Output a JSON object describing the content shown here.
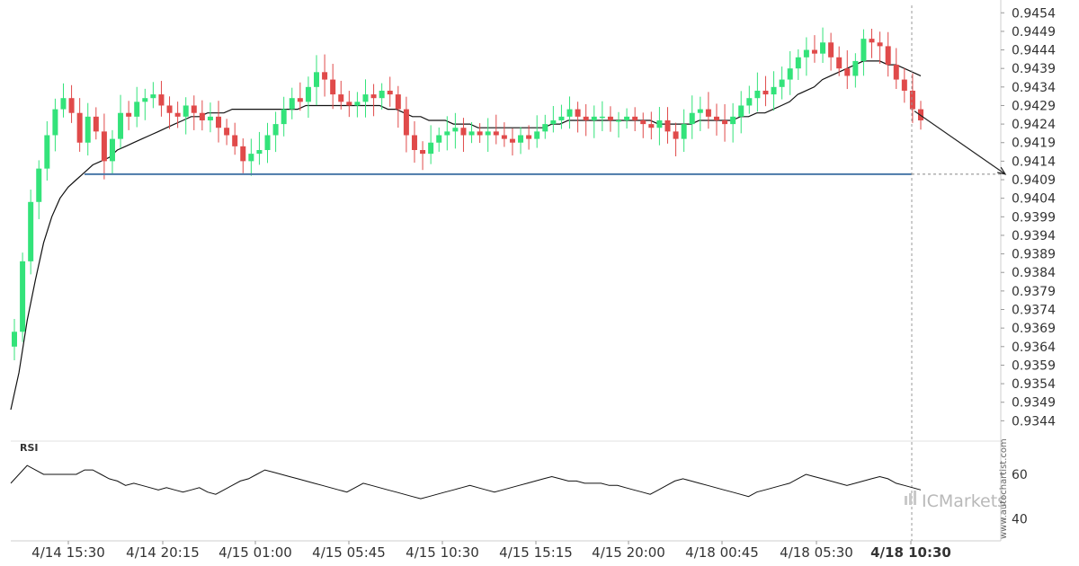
{
  "chart_data": {
    "type": "candlestick",
    "grid": true,
    "colors": {
      "up": "#33e37a",
      "down": "#e04a4a",
      "ma": "#111111",
      "support": "#4a78a8",
      "rsi": "#111111",
      "grid": "#e6e6e6"
    },
    "ylim": [
      0.9339,
      0.9456
    ],
    "y_ticks": [
      "0.9454",
      "0.9449",
      "0.9444",
      "0.9439",
      "0.9434",
      "0.9429",
      "0.9424",
      "0.9419",
      "0.9414",
      "0.9409",
      "0.9404",
      "0.9399",
      "0.9394",
      "0.9389",
      "0.9384",
      "0.9379",
      "0.9374",
      "0.9369",
      "0.9364",
      "0.9359",
      "0.9354",
      "0.9349",
      "0.9344"
    ],
    "x_labels": [
      "4/14 15:30",
      "4/14 20:15",
      "4/15 01:00",
      "4/15 05:45",
      "4/15 10:30",
      "4/15 15:15",
      "4/15 20:00",
      "4/18 00:45",
      "4/18 05:30",
      "4/18 10:30"
    ],
    "support_level": 0.94105,
    "projection": {
      "from": 0.94275,
      "to": 0.94105
    },
    "last_candle_label": "4/18 10:30",
    "close_series": [
      0.9368,
      0.9387,
      0.9403,
      0.9412,
      0.9421,
      0.9428,
      0.9431,
      0.9427,
      0.9419,
      0.9426,
      0.9422,
      0.9414,
      0.942,
      0.9427,
      0.9426,
      0.943,
      0.9431,
      0.9432,
      0.9429,
      0.9427,
      0.9426,
      0.9429,
      0.9427,
      0.9425,
      0.9426,
      0.9423,
      0.9421,
      0.9418,
      0.9414,
      0.9416,
      0.9417,
      0.9421,
      0.9424,
      0.9428,
      0.9431,
      0.943,
      0.9434,
      0.9438,
      0.9436,
      0.9432,
      0.943,
      0.9429,
      0.943,
      0.9432,
      0.9431,
      0.9433,
      0.9432,
      0.9428,
      0.9421,
      0.9417,
      0.9416,
      0.9419,
      0.9421,
      0.9422,
      0.9423,
      0.9421,
      0.9422,
      0.9421,
      0.9422,
      0.9421,
      0.942,
      0.9419,
      0.9421,
      0.942,
      0.9422,
      0.9424,
      0.9425,
      0.9426,
      0.9428,
      0.9426,
      0.9425,
      0.9426,
      0.9426,
      0.9425,
      0.9425,
      0.9426,
      0.9425,
      0.9424,
      0.9423,
      0.9425,
      0.9422,
      0.942,
      0.9424,
      0.9427,
      0.9428,
      0.9426,
      0.9425,
      0.9424,
      0.9426,
      0.9429,
      0.9431,
      0.9433,
      0.9432,
      0.9434,
      0.9436,
      0.9439,
      0.9442,
      0.9444,
      0.9443,
      0.9446,
      0.9442,
      0.9439,
      0.9437,
      0.9441,
      0.9447,
      0.9446,
      0.9445,
      0.944,
      0.9436,
      0.9433,
      0.9428,
      0.9425
    ],
    "ma_series": [
      0.9347,
      0.9357,
      0.9371,
      0.9382,
      0.9392,
      0.9399,
      0.9404,
      0.9407,
      0.9409,
      0.9411,
      0.9413,
      0.9414,
      0.9415,
      0.9417,
      0.9418,
      0.9419,
      0.942,
      0.9421,
      0.9422,
      0.9423,
      0.9424,
      0.9425,
      0.9426,
      0.9426,
      0.9427,
      0.9427,
      0.9427,
      0.9428,
      0.9428,
      0.9428,
      0.9428,
      0.9428,
      0.9428,
      0.9428,
      0.9428,
      0.9428,
      0.9429,
      0.9429,
      0.9429,
      0.9429,
      0.9429,
      0.9429,
      0.9429,
      0.9429,
      0.9429,
      0.9429,
      0.9428,
      0.9428,
      0.9427,
      0.9426,
      0.9426,
      0.9425,
      0.9425,
      0.9425,
      0.9424,
      0.9424,
      0.9424,
      0.9423,
      0.9423,
      0.9423,
      0.9423,
      0.9423,
      0.9423,
      0.9423,
      0.9423,
      0.9423,
      0.9424,
      0.9424,
      0.9425,
      0.9425,
      0.9425,
      0.9425,
      0.9425,
      0.9425,
      0.9425,
      0.9425,
      0.9425,
      0.9425,
      0.9425,
      0.9424,
      0.9424,
      0.9424,
      0.9424,
      0.9424,
      0.9425,
      0.9425,
      0.9425,
      0.9425,
      0.9425,
      0.9426,
      0.9426,
      0.9427,
      0.9427,
      0.9428,
      0.9429,
      0.943,
      0.9432,
      0.9433,
      0.9434,
      0.9436,
      0.9437,
      0.9438,
      0.9439,
      0.944,
      0.9441,
      0.9441,
      0.9441,
      0.944,
      0.944,
      0.9439,
      0.9438,
      0.9437
    ],
    "rsi": {
      "label": "RSI",
      "ylim": [
        30,
        75
      ],
      "ticks": [
        "60",
        "40"
      ],
      "values": [
        56,
        60,
        64,
        62,
        60,
        60,
        60,
        60,
        60,
        62,
        62,
        60,
        58,
        57,
        55,
        56,
        55,
        54,
        53,
        54,
        53,
        52,
        53,
        54,
        52,
        51,
        53,
        55,
        57,
        58,
        60,
        62,
        61,
        60,
        59,
        58,
        57,
        56,
        55,
        54,
        53,
        52,
        54,
        56,
        55,
        54,
        53,
        52,
        51,
        50,
        49,
        50,
        51,
        52,
        53,
        54,
        55,
        54,
        53,
        52,
        53,
        54,
        55,
        56,
        57,
        58,
        59,
        58,
        57,
        57,
        56,
        56,
        56,
        55,
        55,
        54,
        53,
        52,
        51,
        53,
        55,
        57,
        58,
        57,
        56,
        55,
        54,
        53,
        52,
        51,
        50,
        52,
        53,
        54,
        55,
        56,
        58,
        60,
        59,
        58,
        57,
        56,
        55,
        56,
        57,
        58,
        59,
        58,
        56,
        55,
        54,
        53
      ]
    }
  },
  "brand": {
    "name": "ICMarkets"
  },
  "watermark": "www.autochartist.com"
}
